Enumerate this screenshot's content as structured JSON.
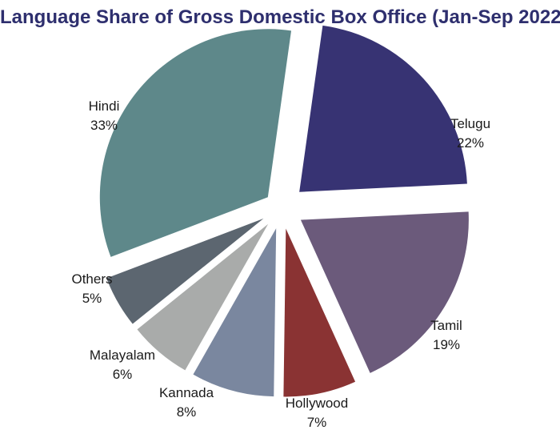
{
  "chart_data": {
    "type": "pie",
    "title": "Language Share of Gross Domestic Box Office (Jan-Sep 2022)",
    "slices": [
      {
        "label": "Telugu",
        "value": 22,
        "value_label": "22%",
        "color": "#373373"
      },
      {
        "label": "Tamil",
        "value": 19,
        "value_label": "19%",
        "color": "#6b5a7b"
      },
      {
        "label": "Hollywood",
        "value": 7,
        "value_label": "7%",
        "color": "#8a3333"
      },
      {
        "label": "Kannada",
        "value": 8,
        "value_label": "8%",
        "color": "#7a879f"
      },
      {
        "label": "Malayalam",
        "value": 6,
        "value_label": "6%",
        "color": "#a9abaa"
      },
      {
        "label": "Others",
        "value": 5,
        "value_label": "5%",
        "color": "#5c6670"
      },
      {
        "label": "Hindi",
        "value": 33,
        "value_label": "33%",
        "color": "#5e888a"
      }
    ]
  }
}
